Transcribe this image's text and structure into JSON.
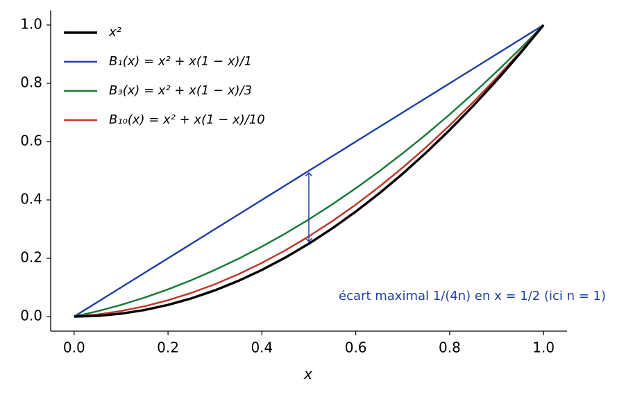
{
  "chart_data": {
    "type": "line",
    "x": [
      0,
      0.05,
      0.1,
      0.15,
      0.2,
      0.25,
      0.3,
      0.35,
      0.4,
      0.45,
      0.5,
      0.55,
      0.6,
      0.65,
      0.7,
      0.75,
      0.8,
      0.85,
      0.9,
      0.95,
      1
    ],
    "series": [
      {
        "name": "x²",
        "color": "#000000",
        "width": 3.5,
        "values": [
          0,
          0.0025,
          0.01,
          0.0225,
          0.04,
          0.0625,
          0.09,
          0.1225,
          0.16,
          0.2025,
          0.25,
          0.3025,
          0.36,
          0.4225,
          0.49,
          0.5625,
          0.64,
          0.7225,
          0.81,
          0.9025,
          1
        ]
      },
      {
        "name": "B₁(x) = x² + x(1 − x)/1",
        "color": "#1f3fa6",
        "width": 2.5,
        "values": [
          0,
          0.05,
          0.1,
          0.15,
          0.2,
          0.25,
          0.3,
          0.35,
          0.4,
          0.45,
          0.5,
          0.55,
          0.6,
          0.65,
          0.7,
          0.75,
          0.8,
          0.85,
          0.9,
          0.95,
          1
        ]
      },
      {
        "name": "B₃(x) = x² + x(1 − x)/3",
        "color": "#1a7a3c",
        "width": 2.5,
        "values": [
          0,
          0.0183,
          0.04,
          0.065,
          0.0933,
          0.125,
          0.16,
          0.1983,
          0.24,
          0.285,
          0.3333,
          0.385,
          0.44,
          0.4983,
          0.56,
          0.625,
          0.6933,
          0.765,
          0.84,
          0.9183,
          1
        ]
      },
      {
        "name": "B₁₀(x) = x² + x(1 − x)/10",
        "color": "#c0392b",
        "width": 2.5,
        "values": [
          0,
          0.00725,
          0.019,
          0.03525,
          0.056,
          0.08125,
          0.111,
          0.14525,
          0.184,
          0.22725,
          0.275,
          0.32725,
          0.384,
          0.44525,
          0.511,
          0.58125,
          0.656,
          0.73525,
          0.819,
          0.90725,
          1
        ]
      }
    ],
    "xlabel": "x",
    "xlim": [
      -0.05,
      1.05
    ],
    "ylim": [
      -0.05,
      1.05
    ],
    "xticks": [
      {
        "value": 0,
        "label": "0.0"
      },
      0.2,
      0.4,
      0.6,
      0.8,
      {
        "value": 1,
        "label": "1.0"
      }
    ],
    "yticks": [
      {
        "value": 0,
        "label": "0.0"
      },
      0.2,
      0.4,
      0.6,
      0.8,
      {
        "value": 1,
        "label": "1.0"
      }
    ],
    "legend": "upper left",
    "annotation": {
      "text": "écart maximal 1/(4n) en x = 1/2 (ici n = 1)",
      "color": "#1f3fa6",
      "x": 0.5,
      "from": 0.25,
      "to": 0.5
    }
  }
}
